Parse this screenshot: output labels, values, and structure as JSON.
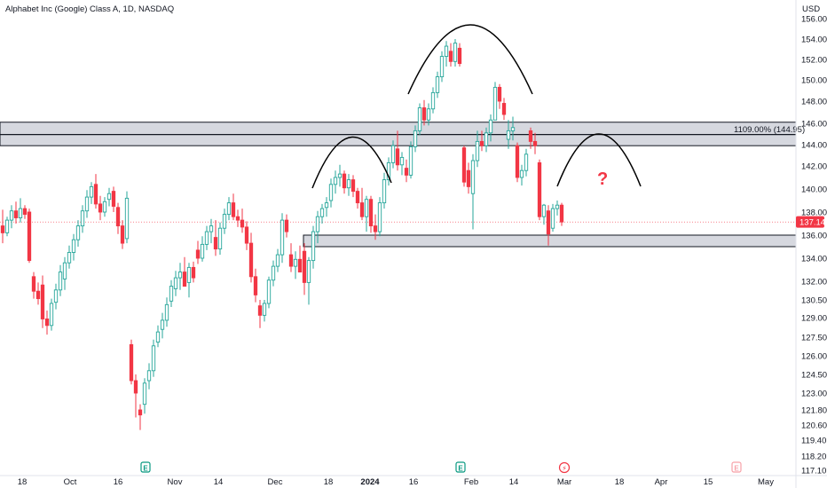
{
  "chart_data": {
    "type": "candlestick",
    "title": "Alphabet Inc (Google) Class A, 1D, NASDAQ",
    "currency": "USD",
    "y_ticks": [
      "156.00",
      "154.00",
      "152.00",
      "150.00",
      "148.00",
      "146.00",
      "144.00",
      "142.00",
      "140.00",
      "138.00",
      "136.00",
      "134.00",
      "132.00",
      "130.50",
      "129.00",
      "127.50",
      "126.00",
      "124.50",
      "123.00",
      "121.80",
      "120.60",
      "119.40",
      "118.20",
      "117.10"
    ],
    "x_ticks": [
      "18",
      "Oct",
      "16",
      "Nov",
      "14",
      "Dec",
      "18",
      "2024",
      "16",
      "Feb",
      "14",
      "Mar",
      "18",
      "Apr",
      "15",
      "May"
    ],
    "x_tick_bold": "2024",
    "current_price": "137.14",
    "fib_label": "1109.00% (144.95)",
    "question_mark": "?",
    "zones": [
      {
        "name": "resistance-zone",
        "from": 143.9,
        "to": 146.1
      },
      {
        "name": "support-zone",
        "from": 135.0,
        "to": 136.0
      }
    ],
    "fib_line": 144.95,
    "event_markers": [
      "E",
      "E",
      "⚡",
      "E"
    ],
    "colors": {
      "up": "#26a69a",
      "down": "#f23645",
      "zone": "#d1d4dc",
      "current": "#f23645",
      "grid": "#ffffff"
    },
    "candles": [
      {
        "o": 136.8,
        "h": 138.2,
        "l": 135.3,
        "c": 136.2
      },
      {
        "o": 136.2,
        "h": 137.6,
        "l": 135.9,
        "c": 137.3
      },
      {
        "o": 137.3,
        "h": 138.6,
        "l": 136.6,
        "c": 138.1
      },
      {
        "o": 138.1,
        "h": 138.9,
        "l": 137.0,
        "c": 137.5
      },
      {
        "o": 137.5,
        "h": 139.2,
        "l": 137.1,
        "c": 138.3
      },
      {
        "o": 138.3,
        "h": 138.6,
        "l": 137.4,
        "c": 137.8
      },
      {
        "o": 138.0,
        "h": 138.3,
        "l": 133.6,
        "c": 133.8
      },
      {
        "o": 132.4,
        "h": 132.8,
        "l": 130.6,
        "c": 131.2
      },
      {
        "o": 131.2,
        "h": 131.9,
        "l": 130.1,
        "c": 130.6
      },
      {
        "o": 131.7,
        "h": 132.5,
        "l": 128.2,
        "c": 128.9
      },
      {
        "o": 128.9,
        "h": 129.6,
        "l": 127.7,
        "c": 128.4
      },
      {
        "o": 128.4,
        "h": 130.6,
        "l": 128.0,
        "c": 130.2
      },
      {
        "o": 130.3,
        "h": 131.8,
        "l": 129.7,
        "c": 131.3
      },
      {
        "o": 131.3,
        "h": 133.4,
        "l": 130.8,
        "c": 132.8
      },
      {
        "o": 132.2,
        "h": 134.1,
        "l": 131.3,
        "c": 133.6
      },
      {
        "o": 133.6,
        "h": 135.1,
        "l": 133.1,
        "c": 134.5
      },
      {
        "o": 134.5,
        "h": 136.1,
        "l": 133.8,
        "c": 135.6
      },
      {
        "o": 135.6,
        "h": 137.3,
        "l": 135.0,
        "c": 136.8
      },
      {
        "o": 136.8,
        "h": 138.6,
        "l": 136.2,
        "c": 138.1
      },
      {
        "o": 138.1,
        "h": 139.9,
        "l": 137.5,
        "c": 139.3
      },
      {
        "o": 139.3,
        "h": 140.6,
        "l": 138.7,
        "c": 140.2
      },
      {
        "o": 140.4,
        "h": 141.3,
        "l": 138.3,
        "c": 138.7
      },
      {
        "o": 138.7,
        "h": 139.4,
        "l": 137.3,
        "c": 138.0
      },
      {
        "o": 138.0,
        "h": 139.3,
        "l": 137.6,
        "c": 138.9
      },
      {
        "o": 139.1,
        "h": 140.1,
        "l": 138.5,
        "c": 139.6
      },
      {
        "o": 139.8,
        "h": 140.2,
        "l": 138.0,
        "c": 138.5
      },
      {
        "o": 138.4,
        "h": 138.8,
        "l": 136.1,
        "c": 136.8
      },
      {
        "o": 136.8,
        "h": 137.3,
        "l": 134.8,
        "c": 135.3
      },
      {
        "o": 135.7,
        "h": 139.8,
        "l": 135.3,
        "c": 139.2
      },
      {
        "o": 126.9,
        "h": 127.3,
        "l": 123.7,
        "c": 124.0
      },
      {
        "o": 124.0,
        "h": 124.5,
        "l": 121.2,
        "c": 123.0
      },
      {
        "o": 121.8,
        "h": 122.2,
        "l": 120.2,
        "c": 121.4
      },
      {
        "o": 122.2,
        "h": 124.2,
        "l": 121.5,
        "c": 123.8
      },
      {
        "o": 124.0,
        "h": 125.4,
        "l": 123.3,
        "c": 124.8
      },
      {
        "o": 124.8,
        "h": 127.3,
        "l": 124.3,
        "c": 126.8
      },
      {
        "o": 127.1,
        "h": 128.4,
        "l": 126.7,
        "c": 127.9
      },
      {
        "o": 128.1,
        "h": 129.4,
        "l": 127.4,
        "c": 128.8
      },
      {
        "o": 128.8,
        "h": 130.7,
        "l": 128.3,
        "c": 130.1
      },
      {
        "o": 130.4,
        "h": 132.1,
        "l": 129.9,
        "c": 131.6
      },
      {
        "o": 131.4,
        "h": 132.9,
        "l": 130.8,
        "c": 132.3
      },
      {
        "o": 132.3,
        "h": 133.6,
        "l": 131.3,
        "c": 132.8
      },
      {
        "o": 132.8,
        "h": 134.1,
        "l": 131.9,
        "c": 131.6
      },
      {
        "o": 131.9,
        "h": 133.6,
        "l": 130.7,
        "c": 133.2
      },
      {
        "o": 133.2,
        "h": 133.7,
        "l": 131.9,
        "c": 132.3
      },
      {
        "o": 134.7,
        "h": 135.5,
        "l": 133.5,
        "c": 134.0
      },
      {
        "o": 134.0,
        "h": 135.9,
        "l": 133.7,
        "c": 135.2
      },
      {
        "o": 135.2,
        "h": 136.8,
        "l": 134.7,
        "c": 136.3
      },
      {
        "o": 136.3,
        "h": 137.4,
        "l": 135.3,
        "c": 136.8
      },
      {
        "o": 135.8,
        "h": 137.3,
        "l": 134.2,
        "c": 134.8
      },
      {
        "o": 134.8,
        "h": 137.1,
        "l": 134.3,
        "c": 136.6
      },
      {
        "o": 136.6,
        "h": 138.3,
        "l": 136.1,
        "c": 137.8
      },
      {
        "o": 137.8,
        "h": 139.3,
        "l": 137.3,
        "c": 138.8
      },
      {
        "o": 138.8,
        "h": 139.6,
        "l": 137.3,
        "c": 137.6
      },
      {
        "o": 137.6,
        "h": 138.2,
        "l": 136.7,
        "c": 137.3
      },
      {
        "o": 137.3,
        "h": 138.3,
        "l": 136.2,
        "c": 136.7
      },
      {
        "o": 136.7,
        "h": 137.2,
        "l": 134.7,
        "c": 135.3
      },
      {
        "o": 135.3,
        "h": 136.2,
        "l": 131.9,
        "c": 132.4
      },
      {
        "o": 132.4,
        "h": 133.1,
        "l": 130.3,
        "c": 130.9
      },
      {
        "o": 130.0,
        "h": 130.5,
        "l": 128.2,
        "c": 129.2
      },
      {
        "o": 129.2,
        "h": 130.5,
        "l": 128.7,
        "c": 130.2
      },
      {
        "o": 130.2,
        "h": 132.4,
        "l": 129.8,
        "c": 132.1
      },
      {
        "o": 132.1,
        "h": 133.8,
        "l": 131.6,
        "c": 133.3
      },
      {
        "o": 133.3,
        "h": 134.8,
        "l": 132.8,
        "c": 134.3
      },
      {
        "o": 134.3,
        "h": 137.9,
        "l": 133.6,
        "c": 137.3
      },
      {
        "o": 137.3,
        "h": 137.8,
        "l": 135.8,
        "c": 136.3
      },
      {
        "o": 134.3,
        "h": 135.3,
        "l": 132.8,
        "c": 133.3
      },
      {
        "o": 133.3,
        "h": 134.6,
        "l": 132.2,
        "c": 133.9
      },
      {
        "o": 133.9,
        "h": 135.1,
        "l": 132.8,
        "c": 132.8
      },
      {
        "o": 134.6,
        "h": 135.3,
        "l": 130.9,
        "c": 131.9
      },
      {
        "o": 131.9,
        "h": 134.1,
        "l": 130.1,
        "c": 133.8
      },
      {
        "o": 133.8,
        "h": 136.8,
        "l": 133.1,
        "c": 136.3
      },
      {
        "o": 136.3,
        "h": 138.1,
        "l": 135.3,
        "c": 137.6
      },
      {
        "o": 137.6,
        "h": 138.7,
        "l": 137.0,
        "c": 138.3
      },
      {
        "o": 138.4,
        "h": 139.3,
        "l": 137.6,
        "c": 138.8
      },
      {
        "o": 139.0,
        "h": 140.9,
        "l": 138.4,
        "c": 140.4
      },
      {
        "o": 140.4,
        "h": 141.6,
        "l": 139.6,
        "c": 141.0
      },
      {
        "o": 141.0,
        "h": 142.1,
        "l": 140.2,
        "c": 141.3
      },
      {
        "o": 141.3,
        "h": 141.6,
        "l": 139.6,
        "c": 140.1
      },
      {
        "o": 140.1,
        "h": 141.3,
        "l": 139.4,
        "c": 140.8
      },
      {
        "o": 140.8,
        "h": 141.2,
        "l": 139.3,
        "c": 139.8
      },
      {
        "o": 139.8,
        "h": 140.1,
        "l": 138.3,
        "c": 138.8
      },
      {
        "o": 138.8,
        "h": 140.1,
        "l": 137.3,
        "c": 137.6
      },
      {
        "o": 137.6,
        "h": 139.4,
        "l": 136.3,
        "c": 139.1
      },
      {
        "o": 139.1,
        "h": 139.4,
        "l": 136.2,
        "c": 136.8
      },
      {
        "o": 136.8,
        "h": 137.8,
        "l": 135.6,
        "c": 136.3
      },
      {
        "o": 136.3,
        "h": 139.3,
        "l": 135.9,
        "c": 138.8
      },
      {
        "o": 138.8,
        "h": 141.4,
        "l": 138.3,
        "c": 140.8
      },
      {
        "o": 140.8,
        "h": 142.8,
        "l": 140.3,
        "c": 142.3
      },
      {
        "o": 142.3,
        "h": 144.4,
        "l": 141.8,
        "c": 143.9
      },
      {
        "o": 143.6,
        "h": 145.3,
        "l": 141.6,
        "c": 142.1
      },
      {
        "o": 142.1,
        "h": 143.3,
        "l": 141.2,
        "c": 142.8
      },
      {
        "o": 141.8,
        "h": 142.6,
        "l": 140.6,
        "c": 141.2
      },
      {
        "o": 141.2,
        "h": 144.3,
        "l": 140.9,
        "c": 143.8
      },
      {
        "o": 143.8,
        "h": 145.8,
        "l": 143.3,
        "c": 145.3
      },
      {
        "o": 145.3,
        "h": 147.8,
        "l": 144.9,
        "c": 147.4
      },
      {
        "o": 147.4,
        "h": 148.1,
        "l": 145.8,
        "c": 146.3
      },
      {
        "o": 146.3,
        "h": 147.8,
        "l": 145.8,
        "c": 147.3
      },
      {
        "o": 147.3,
        "h": 149.3,
        "l": 146.9,
        "c": 148.8
      },
      {
        "o": 148.8,
        "h": 150.8,
        "l": 148.3,
        "c": 150.3
      },
      {
        "o": 150.3,
        "h": 152.8,
        "l": 149.8,
        "c": 152.3
      },
      {
        "o": 152.3,
        "h": 153.8,
        "l": 151.3,
        "c": 153.3
      },
      {
        "o": 152.8,
        "h": 153.6,
        "l": 151.3,
        "c": 151.8
      },
      {
        "o": 151.8,
        "h": 154.0,
        "l": 151.3,
        "c": 153.6
      },
      {
        "o": 153.1,
        "h": 153.6,
        "l": 151.3,
        "c": 151.6
      },
      {
        "o": 143.7,
        "h": 143.9,
        "l": 140.2,
        "c": 140.6
      },
      {
        "o": 141.6,
        "h": 142.3,
        "l": 139.6,
        "c": 140.2
      },
      {
        "o": 139.6,
        "h": 143.1,
        "l": 136.5,
        "c": 142.5
      },
      {
        "o": 142.5,
        "h": 145.3,
        "l": 141.9,
        "c": 144.3
      },
      {
        "o": 144.3,
        "h": 145.3,
        "l": 143.4,
        "c": 143.9
      },
      {
        "o": 143.9,
        "h": 145.6,
        "l": 143.3,
        "c": 145.1
      },
      {
        "o": 145.1,
        "h": 146.8,
        "l": 144.3,
        "c": 146.3
      },
      {
        "o": 146.3,
        "h": 149.8,
        "l": 146.3,
        "c": 149.3
      },
      {
        "o": 149.3,
        "h": 149.6,
        "l": 147.3,
        "c": 148.0
      },
      {
        "o": 147.8,
        "h": 148.3,
        "l": 146.3,
        "c": 146.8
      },
      {
        "o": 144.5,
        "h": 146.3,
        "l": 143.6,
        "c": 145.3
      },
      {
        "o": 145.3,
        "h": 146.6,
        "l": 144.4,
        "c": 145.6
      },
      {
        "o": 143.9,
        "h": 144.2,
        "l": 140.6,
        "c": 141.0
      },
      {
        "o": 141.0,
        "h": 142.1,
        "l": 140.3,
        "c": 141.6
      },
      {
        "o": 141.6,
        "h": 143.6,
        "l": 141.1,
        "c": 143.1
      },
      {
        "o": 145.3,
        "h": 145.6,
        "l": 143.6,
        "c": 144.3
      },
      {
        "o": 144.3,
        "h": 145.1,
        "l": 143.1,
        "c": 143.9
      },
      {
        "o": 142.3,
        "h": 142.6,
        "l": 137.3,
        "c": 137.6
      },
      {
        "o": 137.6,
        "h": 138.7,
        "l": 136.9,
        "c": 138.6
      },
      {
        "o": 138.1,
        "h": 138.6,
        "l": 135.1,
        "c": 136.1
      },
      {
        "o": 136.6,
        "h": 138.7,
        "l": 136.3,
        "c": 138.3
      },
      {
        "o": 138.3,
        "h": 139.0,
        "l": 137.7,
        "c": 138.6
      },
      {
        "o": 138.6,
        "h": 138.8,
        "l": 136.8,
        "c": 137.14
      }
    ]
  }
}
